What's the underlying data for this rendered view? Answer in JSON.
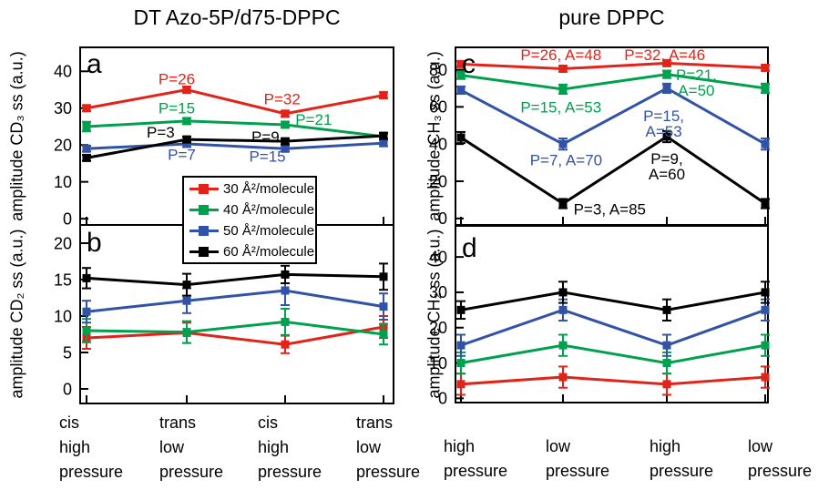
{
  "titles": {
    "left": "DT Azo-5P/d75-DPPC",
    "right": "pure DPPC"
  },
  "colors": {
    "red": "#e2231a",
    "green": "#00a14e",
    "blue": "#3253a5",
    "black": "#000000"
  },
  "legend": {
    "position": "center, straddling panels a and b",
    "items": [
      {
        "label": "30 Å²/molecule",
        "color": "#e2231a"
      },
      {
        "label": "40 Å²/molecule",
        "color": "#00a14e"
      },
      {
        "label": "50 Å²/molecule",
        "color": "#3253a5"
      },
      {
        "label": "60 Å²/molecule",
        "color": "#000000"
      }
    ]
  },
  "chart_data": [
    {
      "id": "a",
      "type": "line",
      "column": "left",
      "ylabel": "amplitude CD₃ ss (a.u.)",
      "ylim": [
        -1.7,
        46.5
      ],
      "yticks": [
        0,
        10,
        20,
        30,
        40
      ],
      "grid": false,
      "series": [
        {
          "name": "30 Å²/molecule",
          "color": "#e2231a",
          "values": [
            30,
            35,
            28.5,
            33.5
          ],
          "errors": [
            0.8,
            0.8,
            0.8,
            0.8
          ]
        },
        {
          "name": "40 Å²/molecule",
          "color": "#00a14e",
          "values": [
            25,
            26.5,
            25.5,
            22.3
          ],
          "errors": [
            1.3,
            0.8,
            0.8,
            0.8
          ]
        },
        {
          "name": "50 Å²/molecule",
          "color": "#3253a5",
          "values": [
            19,
            20.3,
            19,
            20.5
          ],
          "errors": [
            0.8,
            0.8,
            0.8,
            0.8
          ]
        },
        {
          "name": "60 Å²/molecule",
          "color": "#000000",
          "values": [
            16.5,
            21.5,
            21,
            22.5
          ],
          "errors": [
            0.8,
            0.8,
            0.8,
            0.8
          ]
        }
      ],
      "annotations": [
        {
          "text": "P=26",
          "color": "#e2231a",
          "x": 0.9,
          "y": 38
        },
        {
          "text": "P=15",
          "color": "#00a14e",
          "x": 0.9,
          "y": 30
        },
        {
          "text": "P=3",
          "color": "#000000",
          "x": 0.74,
          "y": 23.5
        },
        {
          "text": "P=9",
          "color": "#000000",
          "x": 1.8,
          "y": 22.3
        },
        {
          "text": "P=32",
          "color": "#e2231a",
          "x": 1.97,
          "y": 32.5
        },
        {
          "text": "P=21",
          "color": "#00a14e",
          "x": 2.29,
          "y": 27
        },
        {
          "text": "P=7",
          "color": "#3253a5",
          "x": 0.95,
          "y": 17.5
        },
        {
          "text": "P=15",
          "color": "#3253a5",
          "x": 1.82,
          "y": 17
        }
      ]
    },
    {
      "id": "b",
      "type": "line",
      "column": "left",
      "ylabel": "amplitude CD₂ ss (a.u.)",
      "ylim": [
        -2,
        22.5
      ],
      "yticks": [
        0,
        5,
        10,
        15,
        20
      ],
      "grid": false,
      "categories": [
        [
          "cis",
          "high",
          "pressure"
        ],
        [
          "trans",
          "low",
          "pressure"
        ],
        [
          "cis",
          "high",
          "pressure"
        ],
        [
          "trans",
          "low",
          "pressure"
        ]
      ],
      "series": [
        {
          "name": "30 Å²/molecule",
          "color": "#e2231a",
          "values": [
            7.0,
            7.7,
            6.1,
            8.5
          ],
          "errors": [
            1.5,
            1.4,
            1.2,
            1.5
          ]
        },
        {
          "name": "40 Å²/molecule",
          "color": "#00a14e",
          "values": [
            8.0,
            7.8,
            9.2,
            7.5
          ],
          "errors": [
            1.6,
            1.5,
            1.8,
            1.4
          ]
        },
        {
          "name": "50 Å²/molecule",
          "color": "#3253a5",
          "values": [
            10.6,
            12.1,
            13.5,
            11.3
          ],
          "errors": [
            1.5,
            1.7,
            2.0,
            1.8
          ]
        },
        {
          "name": "60 Å²/molecule",
          "color": "#000000",
          "values": [
            15.2,
            14.3,
            15.7,
            15.4
          ],
          "errors": [
            1.4,
            1.5,
            1.2,
            1.8
          ]
        }
      ],
      "annotations": []
    },
    {
      "id": "c",
      "type": "line",
      "column": "right",
      "ylabel": "amplitude CH₃ ss (a.u.)",
      "ylim": [
        -3.5,
        92
      ],
      "yticks": [
        0,
        20,
        40,
        60,
        80
      ],
      "grid": false,
      "series": [
        {
          "name": "30 Å²/molecule",
          "color": "#e2231a",
          "values": [
            83,
            80.5,
            83.5,
            81
          ],
          "errors": [
            1.5,
            1.5,
            1.5,
            1.5
          ]
        },
        {
          "name": "40 Å²/molecule",
          "color": "#00a14e",
          "values": [
            77,
            69.5,
            77.5,
            70
          ],
          "errors": [
            2,
            2.5,
            2,
            2.5
          ]
        },
        {
          "name": "50 Å²/molecule",
          "color": "#3253a5",
          "values": [
            69,
            40,
            70,
            40
          ],
          "errors": [
            2,
            3,
            2.5,
            3
          ]
        },
        {
          "name": "60 Å²/molecule",
          "color": "#000000",
          "values": [
            43.5,
            8,
            44,
            8
          ],
          "errors": [
            3,
            2.5,
            3,
            2.5
          ]
        }
      ],
      "annotations": [
        {
          "text": "P=26, A=48",
          "color": "#e2231a",
          "x": 0.98,
          "y": 88
        },
        {
          "text": "P=32, A=46",
          "color": "#e2231a",
          "x": 1.98,
          "y": 88
        },
        {
          "text": "P=15, A=53",
          "color": "#00a14e",
          "x": 0.98,
          "y": 60
        },
        {
          "text": "P=21,\nA=50",
          "color": "#00a14e",
          "x": 2.3,
          "y": 73
        },
        {
          "text": "P=15,\nA=53",
          "color": "#3253a5",
          "x": 1.97,
          "y": 51
        },
        {
          "text": "P=7, A=70",
          "color": "#3253a5",
          "x": 1.03,
          "y": 31.5
        },
        {
          "text": "P=9,\nA=60",
          "color": "#000000",
          "x": 2.0,
          "y": 28
        },
        {
          "text": "P=3, A=85",
          "color": "#000000",
          "x": 1.45,
          "y": 5
        }
      ]
    },
    {
      "id": "d",
      "type": "line",
      "column": "right",
      "ylabel": "amplitude CH₂ ss (a.u.)",
      "ylim": [
        -1.2,
        48.8
      ],
      "yticks": [
        0,
        10,
        20,
        30,
        40
      ],
      "grid": false,
      "categories": [
        [
          "high",
          "pressure"
        ],
        [
          "low",
          "pressure"
        ],
        [
          "high",
          "pressure"
        ],
        [
          "low",
          "pressure"
        ]
      ],
      "series": [
        {
          "name": "30 Å²/molecule",
          "color": "#e2231a",
          "values": [
            4,
            6,
            4,
            6
          ],
          "errors": [
            3,
            3,
            3,
            3
          ]
        },
        {
          "name": "40 Å²/molecule",
          "color": "#00a14e",
          "values": [
            10,
            15,
            10,
            15
          ],
          "errors": [
            3,
            3,
            3,
            3
          ]
        },
        {
          "name": "50 Å²/molecule",
          "color": "#3253a5",
          "values": [
            15,
            25,
            15,
            25
          ],
          "errors": [
            3,
            3,
            3,
            3
          ]
        },
        {
          "name": "60 Å²/molecule",
          "color": "#000000",
          "values": [
            25,
            30,
            25,
            30
          ],
          "errors": [
            2.5,
            3,
            3,
            3
          ]
        }
      ],
      "annotations": []
    }
  ]
}
